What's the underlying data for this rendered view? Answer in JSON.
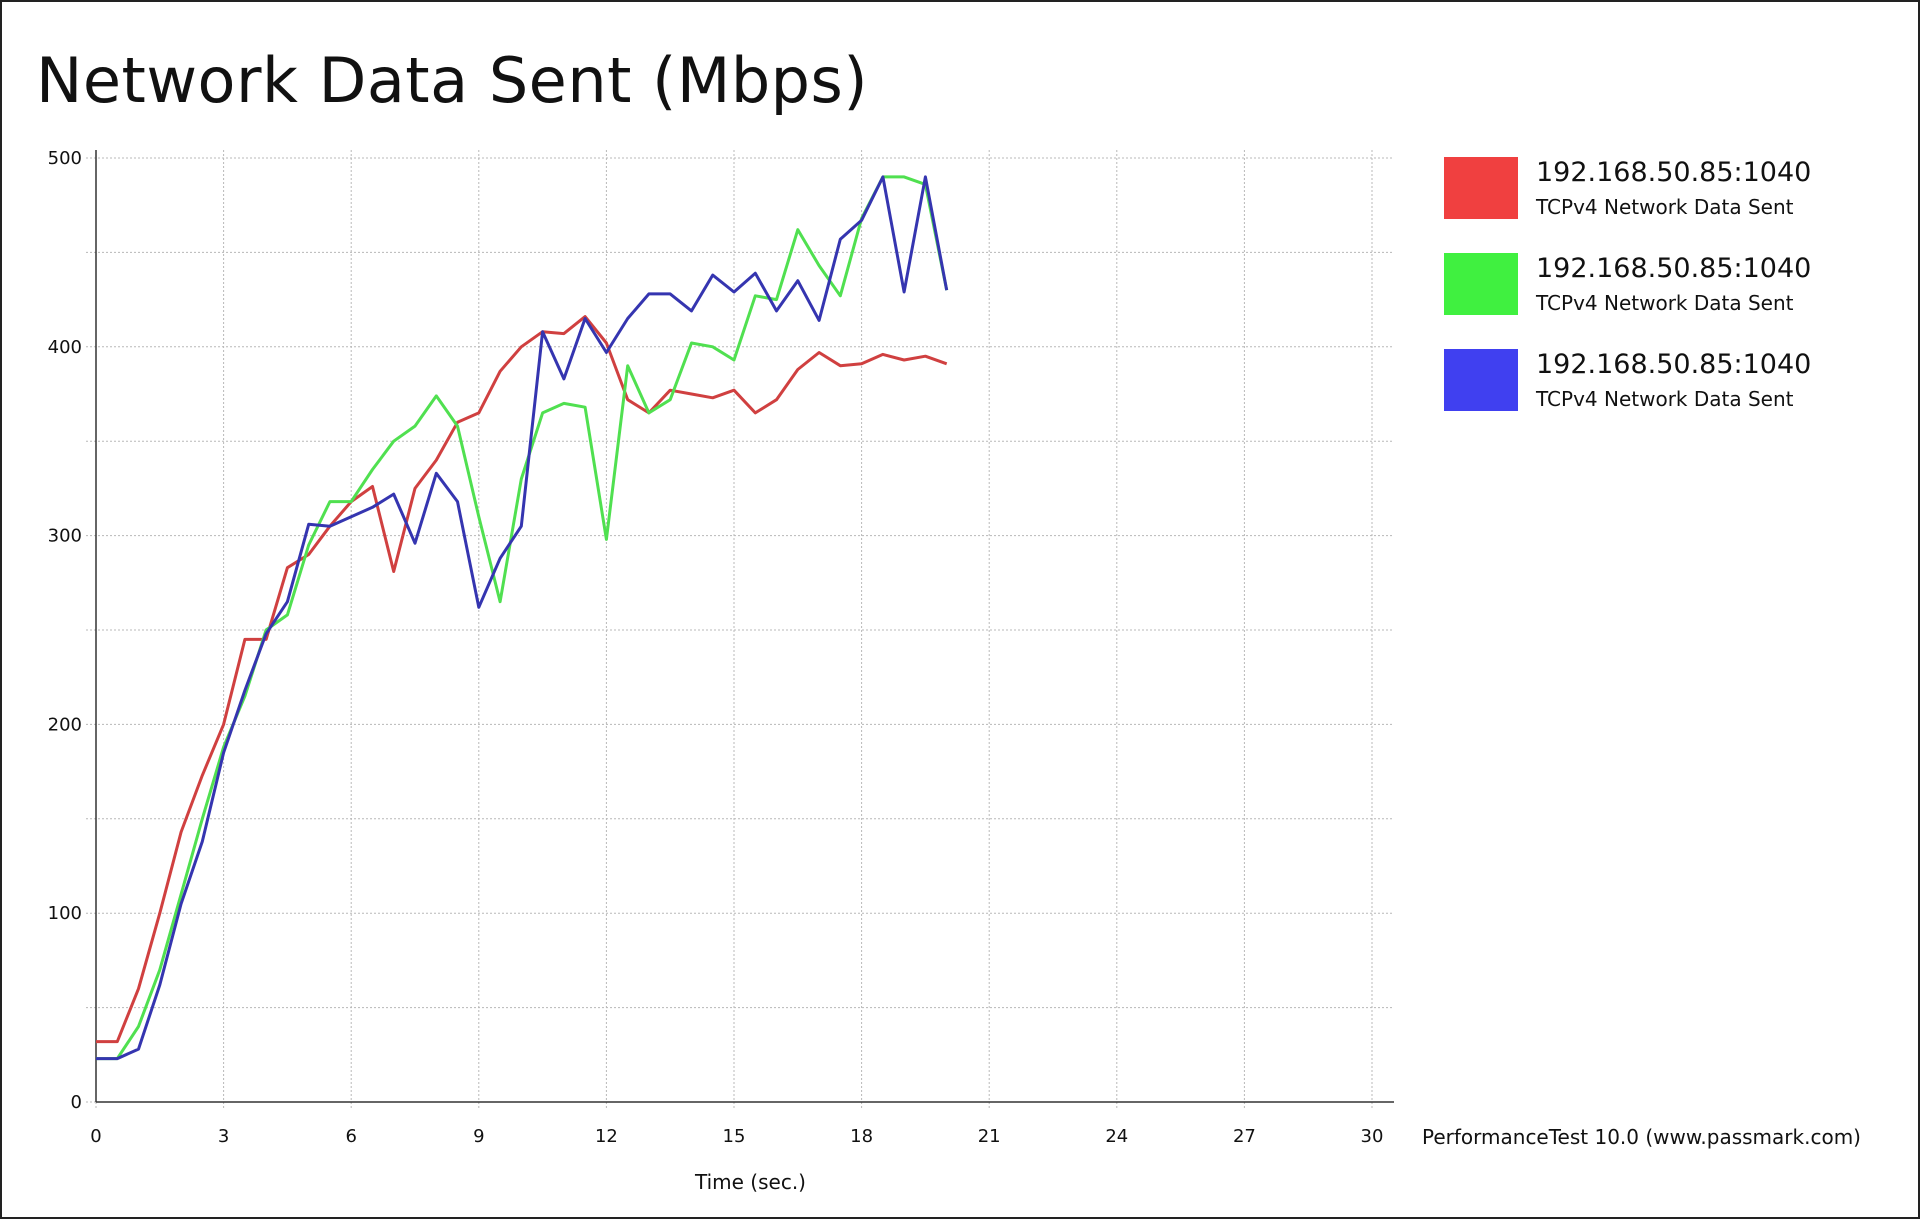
{
  "chart_data": {
    "type": "line",
    "title": "Network Data Sent (Mbps)",
    "xlabel": "Time (sec.)",
    "ylabel": "",
    "xlim": [
      0,
      30
    ],
    "ylim": [
      0,
      500
    ],
    "x_ticks": [
      0,
      3,
      6,
      9,
      12,
      15,
      18,
      21,
      24,
      27,
      30
    ],
    "y_ticks": [
      0,
      100,
      200,
      300,
      400,
      500
    ],
    "grid": true,
    "legend_position": "right",
    "series": [
      {
        "name": "192.168.50.85:1040",
        "description": "TCPv4 Network Data Sent",
        "color": "#f04040",
        "points": [
          [
            0,
            32
          ],
          [
            0.5,
            32
          ],
          [
            1,
            60
          ],
          [
            1.5,
            100
          ],
          [
            2,
            143
          ],
          [
            2.5,
            173
          ],
          [
            3,
            200
          ],
          [
            3.5,
            245
          ],
          [
            4,
            245
          ],
          [
            4.5,
            283
          ],
          [
            5,
            290
          ],
          [
            5.5,
            305
          ],
          [
            6,
            318
          ],
          [
            6.5,
            326
          ],
          [
            7,
            281
          ],
          [
            7.5,
            325
          ],
          [
            8,
            340
          ],
          [
            8.5,
            360
          ],
          [
            9,
            365
          ],
          [
            9.5,
            387
          ],
          [
            10,
            400
          ],
          [
            10.5,
            408
          ],
          [
            11,
            407
          ],
          [
            11.5,
            416
          ],
          [
            12,
            402
          ],
          [
            12.5,
            372
          ],
          [
            13,
            365
          ],
          [
            13.5,
            377
          ],
          [
            14,
            375
          ],
          [
            14.5,
            373
          ],
          [
            15,
            377
          ],
          [
            15.5,
            365
          ],
          [
            16,
            372
          ],
          [
            16.5,
            388
          ],
          [
            17,
            397
          ],
          [
            17.5,
            390
          ],
          [
            18,
            391
          ],
          [
            18.5,
            396
          ],
          [
            19,
            393
          ],
          [
            19.5,
            395
          ],
          [
            20,
            391
          ]
        ]
      },
      {
        "name": "192.168.50.85:1040",
        "description": "TCPv4 Network Data Sent",
        "color": "#40f040",
        "points": [
          [
            0,
            23
          ],
          [
            0.5,
            23
          ],
          [
            1,
            40
          ],
          [
            1.5,
            70
          ],
          [
            2,
            110
          ],
          [
            2.5,
            150
          ],
          [
            3,
            188
          ],
          [
            3.5,
            215
          ],
          [
            4,
            250
          ],
          [
            4.5,
            258
          ],
          [
            5,
            295
          ],
          [
            5.5,
            318
          ],
          [
            6,
            318
          ],
          [
            6.5,
            335
          ],
          [
            7,
            350
          ],
          [
            7.5,
            358
          ],
          [
            8,
            374
          ],
          [
            8.5,
            358
          ],
          [
            9,
            310
          ],
          [
            9.5,
            265
          ],
          [
            10,
            330
          ],
          [
            10.5,
            365
          ],
          [
            11,
            370
          ],
          [
            11.5,
            368
          ],
          [
            12,
            298
          ],
          [
            12.5,
            390
          ],
          [
            13,
            365
          ],
          [
            13.5,
            372
          ],
          [
            14,
            402
          ],
          [
            14.5,
            400
          ],
          [
            15,
            393
          ],
          [
            15.5,
            427
          ],
          [
            16,
            425
          ],
          [
            16.5,
            462
          ],
          [
            17,
            443
          ],
          [
            17.5,
            427
          ],
          [
            18,
            468
          ],
          [
            18.5,
            490
          ],
          [
            19,
            490
          ],
          [
            19.5,
            486
          ],
          [
            20,
            430
          ]
        ]
      },
      {
        "name": "192.168.50.85:1040",
        "description": "TCPv4 Network Data Sent",
        "color": "#4040f0",
        "points": [
          [
            0,
            23
          ],
          [
            0.5,
            23
          ],
          [
            1,
            28
          ],
          [
            1.5,
            62
          ],
          [
            2,
            105
          ],
          [
            2.5,
            138
          ],
          [
            3,
            185
          ],
          [
            3.5,
            218
          ],
          [
            4,
            248
          ],
          [
            4.5,
            265
          ],
          [
            5,
            306
          ],
          [
            5.5,
            305
          ],
          [
            6,
            310
          ],
          [
            6.5,
            315
          ],
          [
            7,
            322
          ],
          [
            7.5,
            296
          ],
          [
            8,
            333
          ],
          [
            8.5,
            318
          ],
          [
            9,
            262
          ],
          [
            9.5,
            288
          ],
          [
            10,
            305
          ],
          [
            10.5,
            408
          ],
          [
            11,
            383
          ],
          [
            11.5,
            415
          ],
          [
            12,
            397
          ],
          [
            12.5,
            415
          ],
          [
            13,
            428
          ],
          [
            13.5,
            428
          ],
          [
            14,
            419
          ],
          [
            14.5,
            438
          ],
          [
            15,
            429
          ],
          [
            15.5,
            439
          ],
          [
            16,
            419
          ],
          [
            16.5,
            435
          ],
          [
            17,
            414
          ],
          [
            17.5,
            457
          ],
          [
            18,
            467
          ],
          [
            18.5,
            490
          ],
          [
            19,
            429
          ],
          [
            19.5,
            490
          ],
          [
            20,
            430
          ]
        ]
      }
    ]
  },
  "footer": {
    "credit": "PerformanceTest 10.0 (www.passmark.com)"
  }
}
